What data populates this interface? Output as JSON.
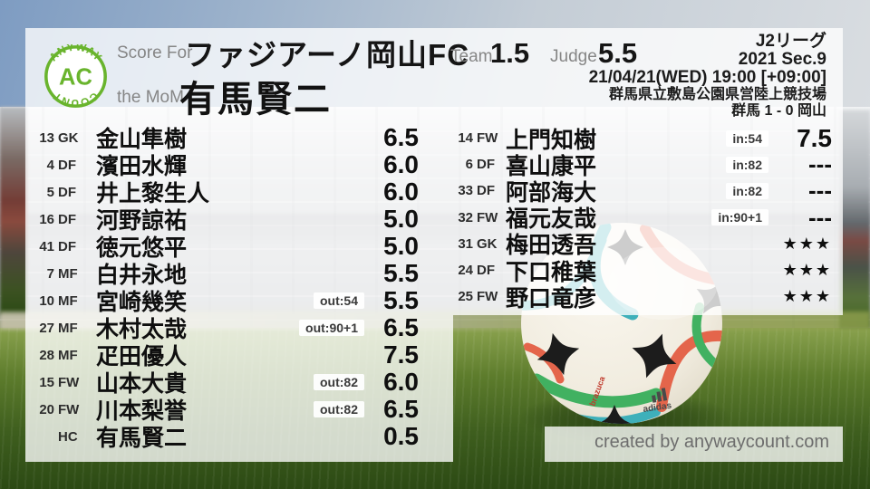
{
  "logo": {
    "top": "ANYWAY",
    "center": "AC",
    "bottom": "COUNT"
  },
  "header": {
    "score_for_label": "Score For",
    "team_name": "ファジアーノ岡山FC",
    "mom_label": "the MoM",
    "mom_name": "有馬賢二",
    "team_label": "Team",
    "team_score": "1.5",
    "judge_label": "Judge",
    "judge_score": "5.5"
  },
  "match_info": {
    "league": "J2リーグ",
    "season": "2021 Sec.9",
    "kickoff": "21/04/21(WED) 19:00 [+09:00]",
    "venue": "群馬県立敷島公園県営陸上競技場",
    "result": "群馬 1 - 0 岡山"
  },
  "lists": {
    "starters": [
      {
        "num": "13",
        "pos": "GK",
        "name": "金山隼樹",
        "badge": "",
        "rating": "6.5"
      },
      {
        "num": "4",
        "pos": "DF",
        "name": "濱田水輝",
        "badge": "",
        "rating": "6.0"
      },
      {
        "num": "5",
        "pos": "DF",
        "name": "井上黎生人",
        "badge": "",
        "rating": "6.0"
      },
      {
        "num": "16",
        "pos": "DF",
        "name": "河野諒祐",
        "badge": "",
        "rating": "5.0"
      },
      {
        "num": "41",
        "pos": "DF",
        "name": "徳元悠平",
        "badge": "",
        "rating": "5.0"
      },
      {
        "num": "7",
        "pos": "MF",
        "name": "白井永地",
        "badge": "",
        "rating": "5.5"
      },
      {
        "num": "10",
        "pos": "MF",
        "name": "宮崎幾笑",
        "badge": "out:54",
        "rating": "5.5"
      },
      {
        "num": "27",
        "pos": "MF",
        "name": "木村太哉",
        "badge": "out:90+1",
        "rating": "6.5"
      },
      {
        "num": "28",
        "pos": "MF",
        "name": "疋田優人",
        "badge": "",
        "rating": "7.5"
      },
      {
        "num": "15",
        "pos": "FW",
        "name": "山本大貴",
        "badge": "out:82",
        "rating": "6.0"
      },
      {
        "num": "20",
        "pos": "FW",
        "name": "川本梨誉",
        "badge": "out:82",
        "rating": "6.5"
      },
      {
        "num": "",
        "pos": "HC",
        "name": "有馬賢二",
        "badge": "",
        "rating": "0.5"
      }
    ],
    "subs": [
      {
        "num": "14",
        "pos": "FW",
        "name": "上門知樹",
        "badge": "in:54",
        "rating": "7.5"
      },
      {
        "num": "6",
        "pos": "DF",
        "name": "喜山康平",
        "badge": "in:82",
        "rating": "---"
      },
      {
        "num": "33",
        "pos": "DF",
        "name": "阿部海大",
        "badge": "in:82",
        "rating": "---"
      },
      {
        "num": "32",
        "pos": "FW",
        "name": "福元友哉",
        "badge": "in:90+1",
        "rating": "---"
      },
      {
        "num": "31",
        "pos": "GK",
        "name": "梅田透吾",
        "badge": "",
        "rating": "★★★"
      },
      {
        "num": "24",
        "pos": "DF",
        "name": "下口稚葉",
        "badge": "",
        "rating": "★★★"
      },
      {
        "num": "25",
        "pos": "FW",
        "name": "野口竜彦",
        "badge": "",
        "rating": "★★★"
      }
    ]
  },
  "footer": {
    "credit": "created by anywaycount.com"
  },
  "colors": {
    "brand_green": "#69b42d",
    "ball_teal": "#3eb0ba",
    "ball_orange": "#e4654b",
    "ball_green": "#41b161"
  }
}
